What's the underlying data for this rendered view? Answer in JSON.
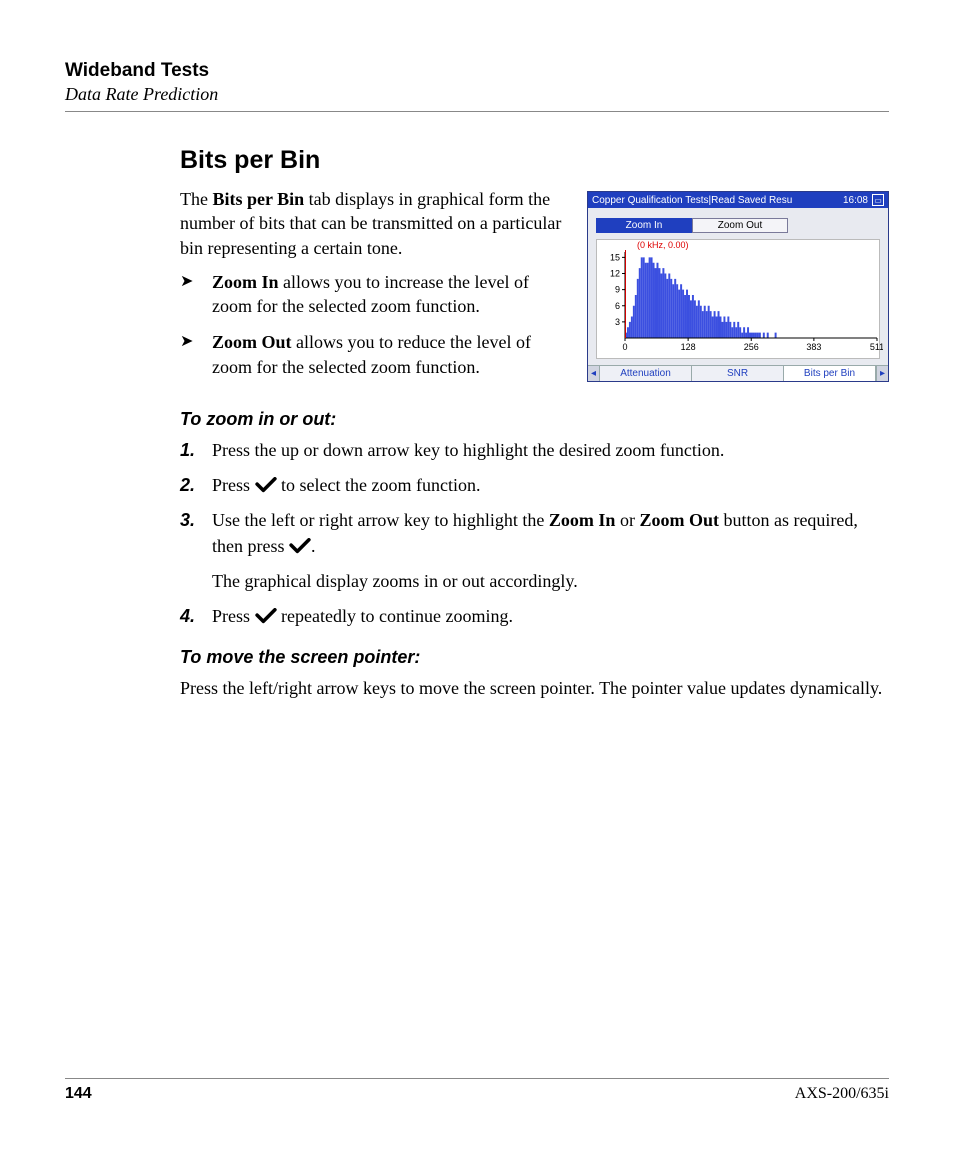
{
  "header": {
    "chapter": "Wideband Tests",
    "section": "Data Rate Prediction"
  },
  "title": "Bits per Bin",
  "intro": {
    "prefix": "The ",
    "bold": "Bits per Bin",
    "suffix": " tab displays in graphical form the number of bits that can be transmitted on a particular bin representing a certain tone."
  },
  "bullets": [
    {
      "bold": "Zoom In",
      "text": " allows you to increase the level of zoom for the selected zoom function."
    },
    {
      "bold": "Zoom Out",
      "text": " allows you to reduce the level of zoom for the selected zoom function."
    }
  ],
  "proc1": {
    "heading": "To zoom in or out:",
    "steps": [
      {
        "text": "Press the up or down arrow key to highlight the desired zoom function."
      },
      {
        "pre": "Press ",
        "check": true,
        "post": " to select the zoom function."
      },
      {
        "pre": "Use the left or right arrow key to highlight the ",
        "b1": "Zoom In",
        "mid": " or ",
        "b2": "Zoom Out",
        "post1": " button as required, then press ",
        "check": true,
        "post2": ".",
        "follow": "The graphical display zooms in or out accordingly."
      },
      {
        "pre": "Press ",
        "check": true,
        "post": " repeatedly to continue zooming."
      }
    ]
  },
  "proc2": {
    "heading": "To move the screen pointer:",
    "body": "Press the left/right arrow keys to move the screen pointer. The pointer value updates dynamically."
  },
  "screenshot": {
    "titlebar": "Copper Qualification Tests|Read Saved Resu",
    "time": "16:08",
    "zoom_in": "Zoom In",
    "zoom_out": "Zoom Out",
    "cursor_label": "(0 kHz, 0.00)",
    "tabs": {
      "attenuation": "Attenuation",
      "snr": "SNR",
      "bits": "Bits per Bin"
    },
    "chart": {
      "type": "bar",
      "bar_color": "#3b4fe0",
      "cursor_color": "#d00000",
      "background": "#ffffff",
      "axis_color": "#000000",
      "y_ticks": [
        3,
        6,
        9,
        12,
        15
      ],
      "x_ticks": [
        0,
        128,
        256,
        383,
        511
      ],
      "x_max": 511,
      "y_max": 16,
      "values": [
        1,
        2,
        3,
        4,
        6,
        8,
        11,
        13,
        15,
        15,
        14,
        14,
        15,
        15,
        14,
        13,
        14,
        13,
        12,
        13,
        12,
        11,
        12,
        11,
        10,
        11,
        10,
        9,
        10,
        9,
        8,
        9,
        8,
        7,
        8,
        7,
        6,
        7,
        6,
        5,
        6,
        5,
        6,
        5,
        4,
        5,
        4,
        5,
        4,
        3,
        4,
        3,
        4,
        3,
        2,
        3,
        2,
        3,
        2,
        1,
        2,
        1,
        2,
        1,
        1,
        1,
        1,
        1,
        1,
        0,
        1,
        0,
        1,
        0,
        0,
        0,
        1,
        0,
        0,
        0,
        0,
        0,
        0,
        0,
        0,
        0,
        0,
        0,
        0,
        0,
        0,
        0,
        0,
        0,
        0,
        0,
        0,
        0,
        0,
        0,
        0,
        0,
        0,
        0,
        0,
        0,
        0,
        0,
        0,
        0,
        0,
        0,
        0,
        0,
        0,
        0,
        0,
        0,
        0,
        0,
        0,
        0,
        0,
        0,
        0,
        0,
        0,
        0
      ]
    }
  },
  "footer": {
    "page": "144",
    "model": "AXS-200/635i"
  }
}
